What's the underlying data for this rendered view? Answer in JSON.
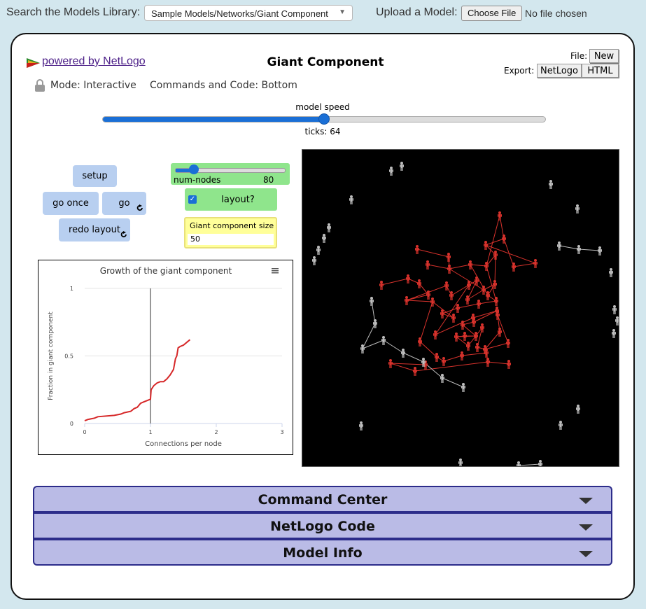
{
  "topbar": {
    "library_label": "Search the Models Library:",
    "library_value": "Sample Models/Networks/Giant Component",
    "upload_label": "Upload a Model:",
    "choose_file": "Choose File",
    "no_file": "No file chosen"
  },
  "header": {
    "powered_by": "powered by NetLogo",
    "model_title": "Giant Component",
    "file_label": "File:",
    "new_button": "New",
    "export_label": "Export:",
    "export_netlogo": "NetLogo",
    "export_html": "HTML",
    "mode": "Mode: Interactive",
    "commands_code": "Commands and Code: Bottom"
  },
  "speed": {
    "label": "model speed",
    "fraction": 0.5,
    "ticks": "ticks: 64"
  },
  "widgets": {
    "setup": "setup",
    "go_once": "go once",
    "go": "go",
    "redo_layout": "redo layout",
    "forever_icon": "forever-icon",
    "num_nodes_label": "num-nodes",
    "num_nodes_value": "80",
    "num_nodes_fraction": 0.17,
    "layout_label": "layout?",
    "layout_checked": true,
    "monitor_label": "Giant component size",
    "monitor_value": "50"
  },
  "chart_data": {
    "type": "line",
    "title": "Growth of the giant component",
    "xlabel": "Connections per node",
    "ylabel": "Fraction in giant component",
    "xlim": [
      0,
      3
    ],
    "ylim": [
      0,
      1
    ],
    "xticks": [
      "0",
      "1",
      "2",
      "3"
    ],
    "yticks": [
      "0",
      "0.5",
      "1"
    ],
    "menu_icon": "hamburger-icon",
    "series": [
      {
        "color": "#d62728",
        "x": [
          0.0,
          0.05,
          0.15,
          0.2,
          0.45,
          0.55,
          0.6,
          0.7,
          0.75,
          0.8,
          0.85,
          0.9,
          0.95,
          1.0,
          1.01,
          1.05,
          1.1,
          1.15,
          1.2,
          1.25,
          1.3,
          1.35,
          1.38,
          1.4,
          1.42,
          1.45,
          1.5,
          1.55,
          1.6
        ],
        "y": [
          0.02,
          0.03,
          0.04,
          0.05,
          0.06,
          0.07,
          0.08,
          0.09,
          0.11,
          0.12,
          0.15,
          0.16,
          0.17,
          0.18,
          0.25,
          0.28,
          0.3,
          0.31,
          0.31,
          0.33,
          0.36,
          0.4,
          0.48,
          0.5,
          0.56,
          0.57,
          0.58,
          0.6,
          0.62
        ]
      }
    ],
    "marker_x": 1.0
  },
  "world": {
    "background": "#000000",
    "giant_color": "#d8322c",
    "other_color": "#bdbdbd"
  },
  "sections": {
    "command_center": "Command Center",
    "netlogo_code": "NetLogo Code",
    "model_info": "Model Info"
  }
}
